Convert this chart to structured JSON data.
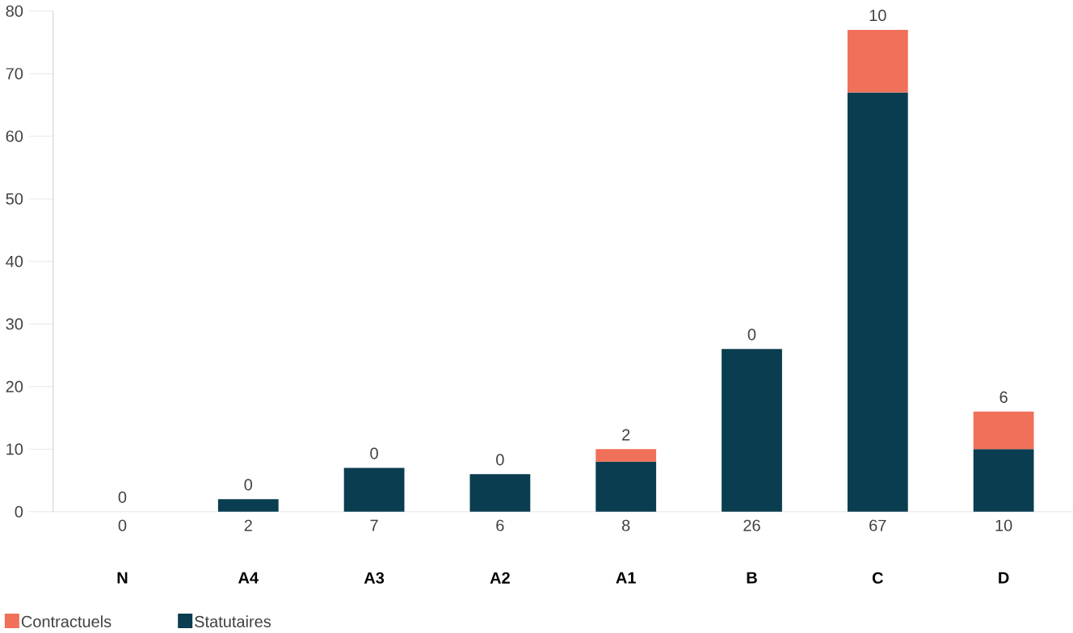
{
  "chart_data": {
    "type": "bar",
    "stacked": true,
    "legend": "bottom left",
    "ylim": [
      0,
      80
    ],
    "yticks": [
      0,
      10,
      20,
      30,
      40,
      50,
      60,
      70,
      80
    ],
    "categories": [
      "N",
      "A4",
      "A3",
      "A2",
      "A1",
      "B",
      "C",
      "D"
    ],
    "series": [
      {
        "name": "Statutaires",
        "color": "#0a3d50",
        "values": [
          0,
          2,
          7,
          6,
          8,
          26,
          67,
          10
        ],
        "value_labels": [
          "0",
          "2",
          "7",
          "6",
          "8",
          "26",
          "67",
          "10"
        ]
      },
      {
        "name": "Contractuels",
        "color": "#f07059",
        "values": [
          0,
          0,
          0,
          0,
          2,
          0,
          10,
          6
        ],
        "value_labels": [
          "0",
          "0",
          "0",
          "0",
          "2",
          "0",
          "10",
          "6"
        ]
      }
    ]
  }
}
